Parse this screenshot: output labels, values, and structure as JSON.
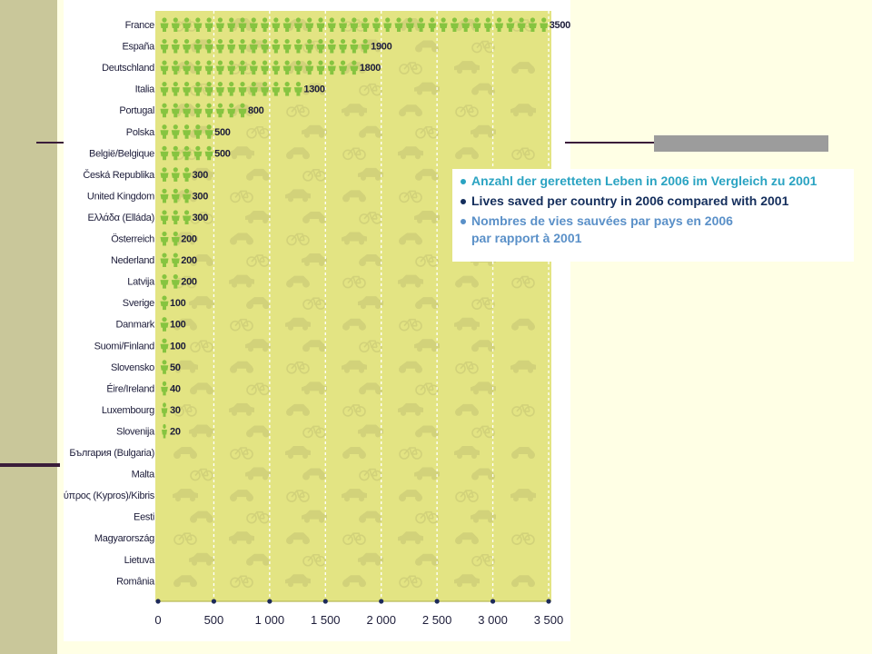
{
  "chart_data": {
    "type": "bar",
    "orientation": "horizontal",
    "categories": [
      "France",
      "España",
      "Deutschland",
      "Italia",
      "Portugal",
      "Polska",
      "België/Belgique",
      "Česká Republika",
      "United Kingdom",
      "Ελλάδα (Elláda)",
      "Österreich",
      "Nederland",
      "Latvija",
      "Sverige",
      "Danmark",
      "Suomi/Finland",
      "Slovensko",
      "Éire/Ireland",
      "Luxembourg",
      "Slovenija",
      "България (Bulgaria)",
      "Malta",
      "Κύπρος (Kypros)/Kibris",
      "Eesti",
      "Magyarország",
      "Lietuva",
      "România"
    ],
    "values": [
      3500,
      1900,
      1800,
      1300,
      800,
      500,
      500,
      300,
      300,
      300,
      200,
      200,
      200,
      100,
      100,
      100,
      50,
      40,
      30,
      20,
      null,
      null,
      null,
      null,
      null,
      null,
      null
    ],
    "value_labels": [
      "3500",
      "1900",
      "1800",
      "1300",
      "800",
      "500",
      "500",
      "300",
      "300",
      "300",
      "200",
      "200",
      "200",
      "100",
      "100",
      "100",
      "50",
      "40",
      "30",
      "20",
      "",
      "",
      "",
      "",
      "",
      "",
      ""
    ],
    "xlim": [
      0,
      3500
    ],
    "x_ticks": [
      0,
      500,
      1000,
      1500,
      2000,
      2500,
      3000,
      3500
    ],
    "x_tick_labels": [
      "0",
      "500",
      "1 000",
      "1 500",
      "2 000",
      "2 500",
      "3 000",
      "3 500"
    ],
    "bar_glyph": "person-icon",
    "background_glyphs": [
      "bicycle-icon",
      "car-icon",
      "motorcycle-icon"
    ],
    "grid": true,
    "colors": {
      "bar": "#86c440",
      "plot_bg": "#e3e483",
      "grid": "#ffffff",
      "text": "#1d1d3a"
    }
  },
  "legend": {
    "items": [
      {
        "text": "Anzahl der geretteten Leben in 2006 im Vergleich zu 2001",
        "color": "#2aa3c2"
      },
      {
        "text": "Lives saved per country in 2006 compared with 2001",
        "color": "#142e5c"
      },
      {
        "text": "Nombres de vies sauvées par pays en 2006 par rapport à 2001",
        "color": "#5a90c8"
      }
    ]
  },
  "colors": {
    "slide_bg": "#ffffe5",
    "strip": "#c9c79a",
    "rule": "#3a1d3a",
    "gray_bar": "#9c9c9c"
  }
}
